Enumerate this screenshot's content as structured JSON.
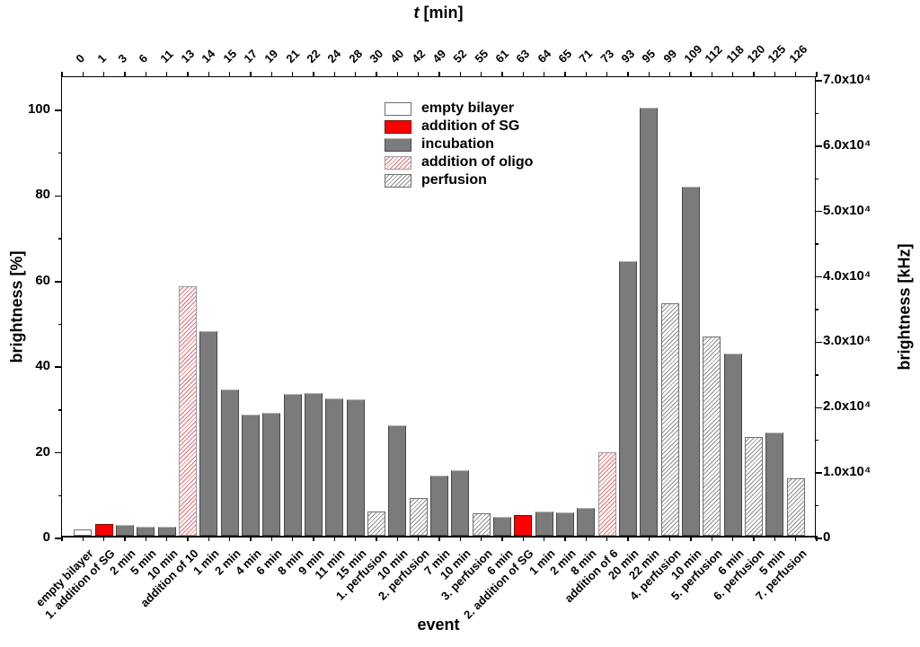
{
  "title_var": "t",
  "title_rest": " [min]",
  "xlabel_bottom": "event",
  "ylabel_left": "brightness [%]",
  "ylabel_right": "brightness [kHz]",
  "legend": [
    {
      "label": "empty bilayer",
      "type": "empty"
    },
    {
      "label": "addition of SG",
      "type": "sg"
    },
    {
      "label": "incubation",
      "type": "incubation"
    },
    {
      "label": "addition of oligo",
      "type": "oligo"
    },
    {
      "label": "perfusion",
      "type": "perfusion"
    }
  ],
  "colors": {
    "sg_red": "#ff0000",
    "incubation_gray": "#7b7b7b",
    "oligo_hatch_red": "#e57070",
    "perfusion_hatch_gray": "#8d8d8d",
    "axis_black": "#000000"
  },
  "chart_data": {
    "type": "bar",
    "title": "t [min]",
    "xlabel": "event",
    "ylabel_left": "brightness [%]",
    "ylabel_right": "brightness [kHz]",
    "ylim_left": [
      0,
      107.8
    ],
    "yticks_left": [
      0,
      20,
      40,
      60,
      80,
      100
    ],
    "yticks_left_minor": [
      10,
      30,
      50,
      70,
      90
    ],
    "ylim_right": [
      0,
      70000
    ],
    "yticks_right": [
      "0",
      "1.0x10⁴",
      "2.0x10⁴",
      "3.0x10⁴",
      "4.0x10⁴",
      "5.0x10⁴",
      "6.0x10⁴",
      "7.0x10⁴"
    ],
    "grid": false,
    "legend_position": "top-center-inside",
    "bars": [
      {
        "event": "empty bilayer",
        "t": "0",
        "value": 1.5,
        "type": "empty"
      },
      {
        "event": "1. addition of SG",
        "t": "1",
        "value": 2.8,
        "type": "sg"
      },
      {
        "event": "2 min",
        "t": "3",
        "value": 2.5,
        "type": "incubation"
      },
      {
        "event": "5 min",
        "t": "6",
        "value": 2.2,
        "type": "incubation"
      },
      {
        "event": "10 min",
        "t": "11",
        "value": 2.2,
        "type": "incubation"
      },
      {
        "event": "addition of 10",
        "t": "13",
        "value": 58.3,
        "type": "oligo"
      },
      {
        "event": "1 min",
        "t": "14",
        "value": 47.8,
        "type": "incubation"
      },
      {
        "event": "2 min",
        "t": "15",
        "value": 34.2,
        "type": "incubation"
      },
      {
        "event": "4 min",
        "t": "17",
        "value": 28.2,
        "type": "incubation"
      },
      {
        "event": "6 min",
        "t": "19",
        "value": 28.7,
        "type": "incubation"
      },
      {
        "event": "8 min",
        "t": "21",
        "value": 33.2,
        "type": "incubation"
      },
      {
        "event": "9 min",
        "t": "22",
        "value": 33.4,
        "type": "incubation"
      },
      {
        "event": "11 min",
        "t": "24",
        "value": 32.1,
        "type": "incubation"
      },
      {
        "event": "15 min",
        "t": "28",
        "value": 31.9,
        "type": "incubation"
      },
      {
        "event": "1. perfusion",
        "t": "30",
        "value": 5.7,
        "type": "perfusion"
      },
      {
        "event": "10 min",
        "t": "40",
        "value": 25.7,
        "type": "incubation"
      },
      {
        "event": "2. perfusion",
        "t": "42",
        "value": 8.8,
        "type": "perfusion"
      },
      {
        "event": "7 min",
        "t": "49",
        "value": 14.0,
        "type": "incubation"
      },
      {
        "event": "10 min",
        "t": "52",
        "value": 15.3,
        "type": "incubation"
      },
      {
        "event": "3. perfusion",
        "t": "55",
        "value": 5.2,
        "type": "perfusion"
      },
      {
        "event": "6 min",
        "t": "61",
        "value": 4.5,
        "type": "incubation"
      },
      {
        "event": "2. addition of SG",
        "t": "63",
        "value": 4.8,
        "type": "sg"
      },
      {
        "event": "1 min",
        "t": "64",
        "value": 5.6,
        "type": "incubation"
      },
      {
        "event": "2 min",
        "t": "65",
        "value": 5.4,
        "type": "incubation"
      },
      {
        "event": "8 min",
        "t": "71",
        "value": 6.5,
        "type": "incubation"
      },
      {
        "event": "addition of 6",
        "t": "73",
        "value": 19.5,
        "type": "oligo"
      },
      {
        "event": "20 min",
        "t": "93",
        "value": 64.2,
        "type": "incubation"
      },
      {
        "event": "22 min",
        "t": "95",
        "value": 100.0,
        "type": "incubation"
      },
      {
        "event": "4. perfusion",
        "t": "99",
        "value": 54.3,
        "type": "perfusion"
      },
      {
        "event": "10 min",
        "t": "109",
        "value": 81.6,
        "type": "incubation"
      },
      {
        "event": "5. perfusion",
        "t": "112",
        "value": 46.6,
        "type": "perfusion"
      },
      {
        "event": "6 min",
        "t": "118",
        "value": 42.6,
        "type": "incubation"
      },
      {
        "event": "6. perfusion",
        "t": "120",
        "value": 23.1,
        "type": "perfusion"
      },
      {
        "event": "5 min",
        "t": "125",
        "value": 24.1,
        "type": "incubation"
      },
      {
        "event": "7. perfusion",
        "t": "126",
        "value": 13.4,
        "type": "perfusion"
      }
    ]
  }
}
